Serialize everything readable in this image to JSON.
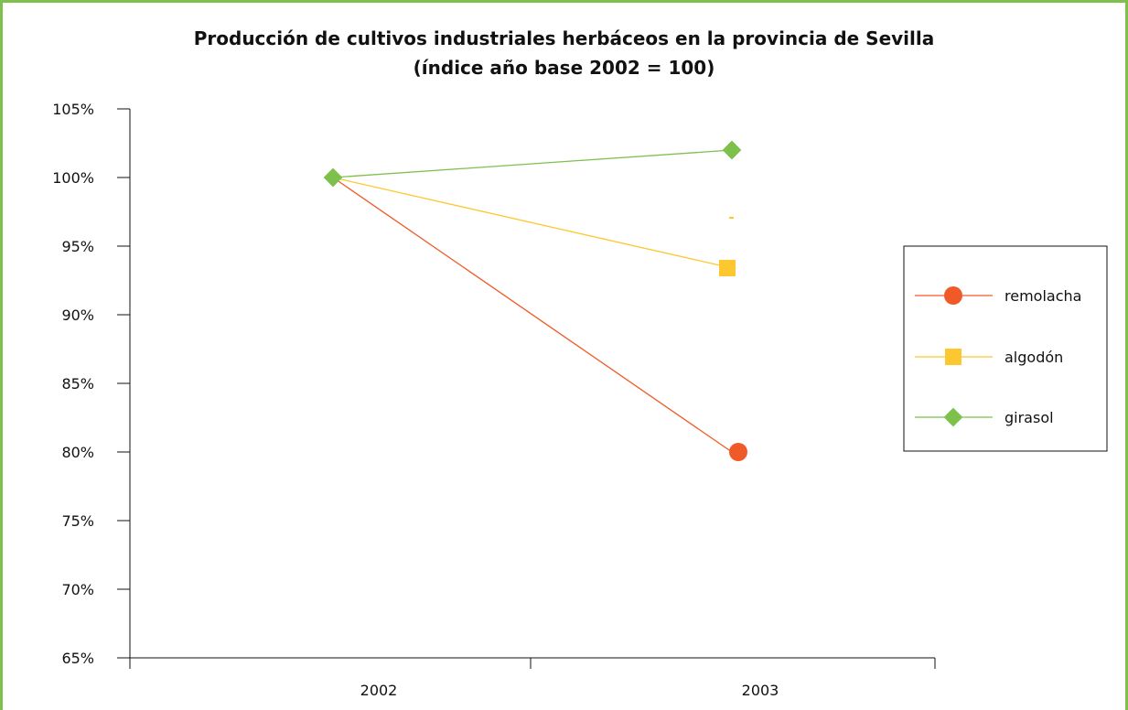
{
  "chart_data": {
    "type": "line",
    "title": "Producción de cultivos industriales herbáceos en la provincia de Sevilla",
    "subtitle": "(índice año base 2002 = 100)",
    "categories": [
      "2002",
      "2003"
    ],
    "y_ticks": [
      "105%",
      "100%",
      "95%",
      "90%",
      "85%",
      "80%",
      "75%",
      "70%",
      "65%"
    ],
    "ylim": [
      65,
      105
    ],
    "y_unit": "%",
    "grid": false,
    "legend_position": "right",
    "series": [
      {
        "name": "remolacha",
        "values": [
          100,
          80
        ],
        "color": "#f05a28",
        "marker": "circle"
      },
      {
        "name": "algodón",
        "values": [
          100,
          93.4
        ],
        "color": "#fdc82f",
        "marker": "square"
      },
      {
        "name": "girasol",
        "values": [
          100,
          102
        ],
        "color": "#7dc04b",
        "marker": "diamond"
      }
    ],
    "colors": {
      "frame": "#7dc04b",
      "axis": "#111111"
    }
  }
}
